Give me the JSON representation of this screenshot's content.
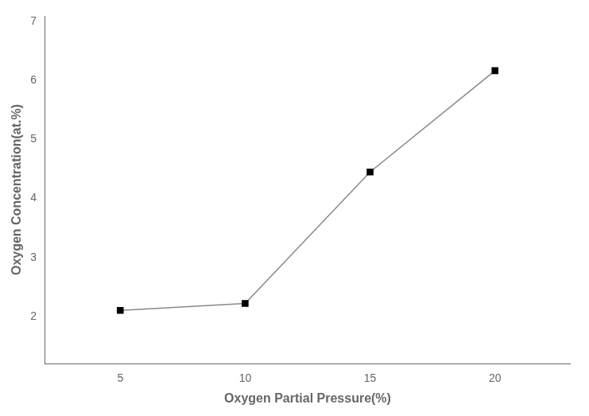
{
  "chart_data": {
    "type": "line",
    "xlabel": "Oxygen Partial Pressure(%)",
    "ylabel": "Oxygen Concentration(at.%)",
    "x": [
      5,
      10,
      15,
      20
    ],
    "series": [
      {
        "values": [
          2.1,
          2.22,
          4.45,
          6.17
        ],
        "color": "#888888",
        "colors": [
          "#000000",
          "#000000",
          "#000000",
          "#000000"
        ],
        "marker": "square"
      }
    ],
    "xlim": [
      2,
      23
    ],
    "xticks": [
      5,
      10,
      15,
      20
    ],
    "ylim": [
      1.2,
      7.1
    ],
    "yticks": [
      2,
      3,
      4,
      5,
      6,
      7
    ],
    "grid": false
  }
}
